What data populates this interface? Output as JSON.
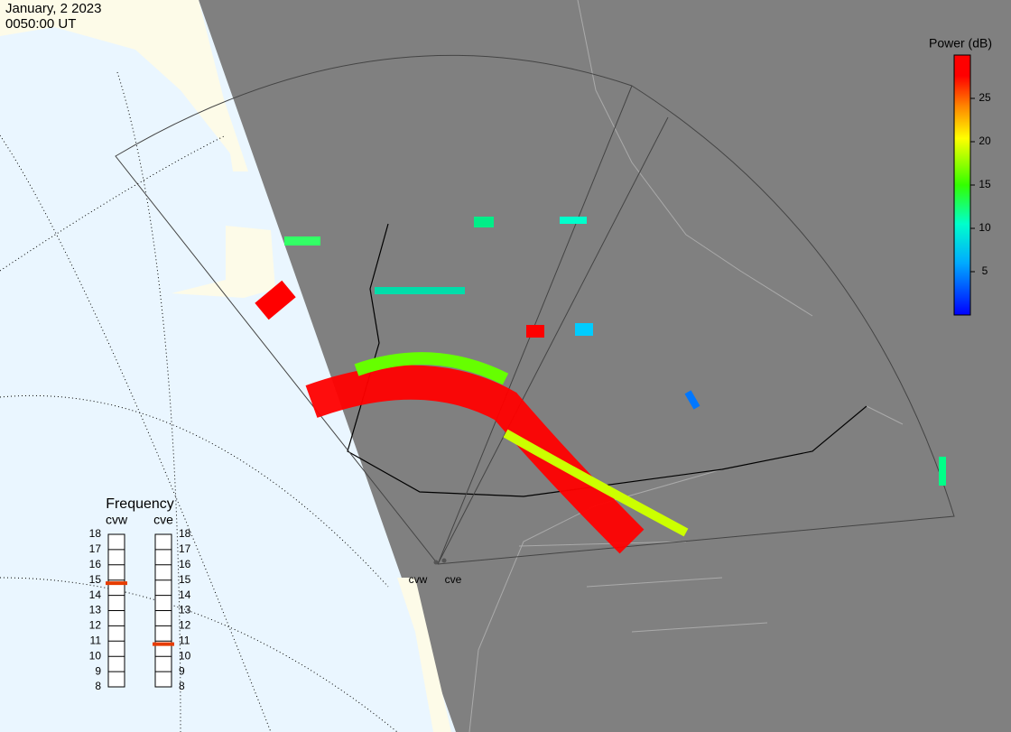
{
  "header": {
    "date": "January, 2 2023",
    "time": "0050:00 UT"
  },
  "colorbar": {
    "title": "Power (dB)",
    "lim": [
      0,
      30
    ],
    "ticks": [
      5,
      10,
      15,
      20,
      25
    ]
  },
  "frequency": {
    "title": "Frequency",
    "ticks": [
      18,
      17,
      16,
      15,
      14,
      13,
      12,
      11,
      10,
      9,
      8
    ],
    "lim": [
      8,
      18
    ],
    "radars": [
      {
        "name": "cvw",
        "value": 14.8
      },
      {
        "name": "cve",
        "value": 10.8
      }
    ]
  },
  "stations": [
    "cvw",
    "cve"
  ]
}
